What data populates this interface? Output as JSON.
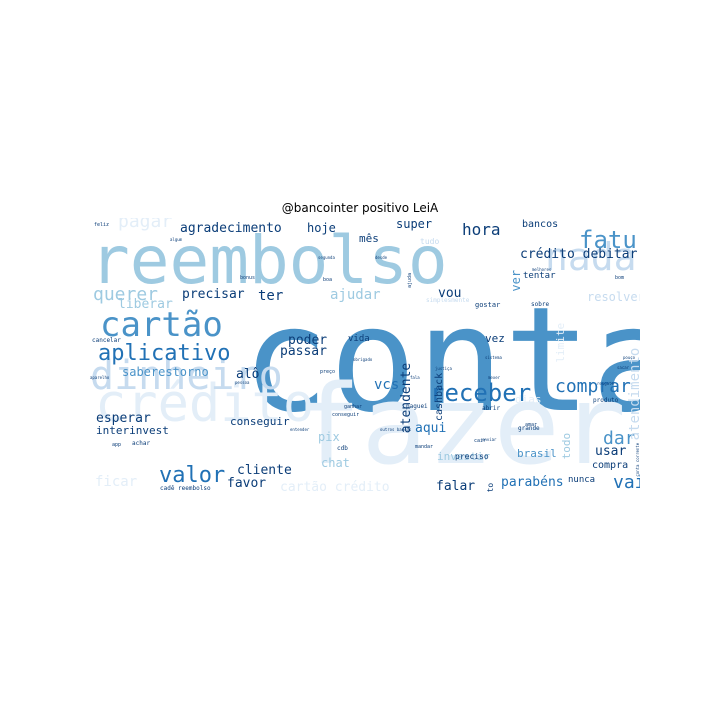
{
  "title": "@bancointer positivo LeiA",
  "colors": {
    "darkest": "#0b3d78",
    "dark": "#2171b5",
    "mid": "#4a93c8",
    "light": "#9ecae1",
    "pale": "#c6dbef",
    "faint": "#e3eef8"
  },
  "words": [
    {
      "text": "conta",
      "color": "mid"
    },
    {
      "text": "fazer",
      "color": "faint"
    },
    {
      "text": "reembolso",
      "color": "light"
    },
    {
      "text": "cartão",
      "color": "mid"
    },
    {
      "text": "nada",
      "color": "pale"
    },
    {
      "text": "crédito",
      "color": "faint"
    },
    {
      "text": "dinheiro",
      "color": "pale"
    },
    {
      "text": "aplicativo",
      "color": "dark"
    },
    {
      "text": "fatura",
      "color": "mid"
    },
    {
      "text": "receber",
      "color": "dark"
    },
    {
      "text": "valor",
      "color": "dark"
    },
    {
      "text": "querer",
      "color": "light"
    },
    {
      "text": "comprar",
      "color": "dark"
    },
    {
      "text": "hora",
      "color": "darkest"
    },
    {
      "text": "dar",
      "color": "mid"
    },
    {
      "text": "vai",
      "color": "dark"
    },
    {
      "text": "pagar",
      "color": "faint"
    },
    {
      "text": "agradecimento",
      "color": "darkest"
    },
    {
      "text": "crédito debitar",
      "color": "darkest"
    },
    {
      "text": "precisar",
      "color": "darkest"
    },
    {
      "text": "ajudar",
      "color": "light"
    },
    {
      "text": "liberar",
      "color": "light"
    },
    {
      "text": "ter",
      "color": "darkest"
    },
    {
      "text": "vou",
      "color": "darkest"
    },
    {
      "text": "poder",
      "color": "darkest"
    },
    {
      "text": "passar",
      "color": "darkest"
    },
    {
      "text": "saberestorno",
      "color": "mid"
    },
    {
      "text": "alô",
      "color": "darkest"
    },
    {
      "text": "vcs",
      "color": "dark"
    },
    {
      "text": "esperar",
      "color": "darkest"
    },
    {
      "text": "interinvest",
      "color": "darkest"
    },
    {
      "text": "conseguir",
      "color": "darkest"
    },
    {
      "text": "aqui",
      "color": "dark"
    },
    {
      "text": "pix",
      "color": "light"
    },
    {
      "text": "chat",
      "color": "light"
    },
    {
      "text": "cliente",
      "color": "darkest"
    },
    {
      "text": "favor",
      "color": "darkest"
    },
    {
      "text": "ficar",
      "color": "faint"
    },
    {
      "text": "cartão crédito",
      "color": "faint"
    },
    {
      "text": "falar",
      "color": "darkest"
    },
    {
      "text": "parabéns",
      "color": "dark"
    },
    {
      "text": "usar",
      "color": "darkest"
    },
    {
      "text": "brasil",
      "color": "mid"
    },
    {
      "text": "nunca",
      "color": "darkest"
    },
    {
      "text": "compra",
      "color": "darkest"
    },
    {
      "text": "super",
      "color": "darkest"
    },
    {
      "text": "hoje",
      "color": "darkest"
    },
    {
      "text": "mês",
      "color": "darkest"
    },
    {
      "text": "bancos",
      "color": "darkest"
    },
    {
      "text": "resolver",
      "color": "pale"
    },
    {
      "text": "atendente",
      "color": "darkest"
    },
    {
      "text": "ver",
      "color": "mid"
    },
    {
      "text": "atendimento",
      "color": "pale"
    },
    {
      "text": "limite",
      "color": "faint"
    },
    {
      "text": "todo",
      "color": "light"
    },
    {
      "text": "dias",
      "color": "faint"
    },
    {
      "text": "investir",
      "color": "light"
    },
    {
      "text": "cashback",
      "color": "darkest"
    },
    {
      "text": "vida",
      "color": "darkest"
    },
    {
      "text": "vez",
      "color": "darkest"
    },
    {
      "text": "preciso",
      "color": "darkest"
    },
    {
      "text": "investimento",
      "color": "darkest"
    },
    {
      "text": "tentar",
      "color": "darkest"
    },
    {
      "text": "sobre",
      "color": "darkest"
    },
    {
      "text": "grande",
      "color": "darkest"
    },
    {
      "text": "produto",
      "color": "darkest"
    },
    {
      "text": "gostar",
      "color": "darkest"
    },
    {
      "text": "simplesmente",
      "color": "pale"
    },
    {
      "text": "abrir",
      "color": "darkest"
    },
    {
      "text": "paguei",
      "color": "darkest"
    },
    {
      "text": "ganhar",
      "color": "darkest"
    },
    {
      "text": "mandar",
      "color": "darkest"
    },
    {
      "text": "cdb",
      "color": "darkest"
    },
    {
      "text": "amar",
      "color": "darkest"
    },
    {
      "text": "achar",
      "color": "darkest"
    },
    {
      "text": "cancelar",
      "color": "darkest"
    },
    {
      "text": "cair",
      "color": "darkest"
    },
    {
      "text": "cadê reembolso",
      "color": "darkest"
    },
    {
      "text": "feliz",
      "color": "darkest"
    },
    {
      "text": "algum",
      "color": "darkest"
    },
    {
      "text": "bom",
      "color": "darkest"
    },
    {
      "text": "boa",
      "color": "darkest"
    },
    {
      "text": "tudo",
      "color": "pale"
    },
    {
      "text": "ajuda",
      "color": "darkest"
    },
    {
      "text": "bonus",
      "color": "darkest"
    },
    {
      "text": "desde",
      "color": "darkest"
    },
    {
      "text": "preço",
      "color": "darkest"
    },
    {
      "text": "outros bancos",
      "color": "darkest"
    },
    {
      "text": "segunda",
      "color": "darkest"
    },
    {
      "text": "obrigado",
      "color": "darkest"
    },
    {
      "text": "melhores",
      "color": "darkest"
    },
    {
      "text": "app",
      "color": "darkest"
    },
    {
      "text": "pessoa",
      "color": "darkest"
    },
    {
      "text": "pouco",
      "color": "darkest"
    },
    {
      "text": "fala",
      "color": "darkest"
    },
    {
      "text": "justiça",
      "color": "darkest"
    },
    {
      "text": "sistema",
      "color": "darkest"
    },
    {
      "text": "enviar",
      "color": "darkest"
    },
    {
      "text": "conseguir",
      "color": "darkest"
    },
    {
      "text": "sacar",
      "color": "darkest"
    },
    {
      "text": "resgate",
      "color": "darkest"
    },
    {
      "text": "aparelho",
      "color": "darkest"
    },
    {
      "text": "mexer",
      "color": "darkest"
    },
    {
      "text": "entender",
      "color": "darkest"
    },
    {
      "text": "conta corrente",
      "color": "darkest"
    }
  ]
}
